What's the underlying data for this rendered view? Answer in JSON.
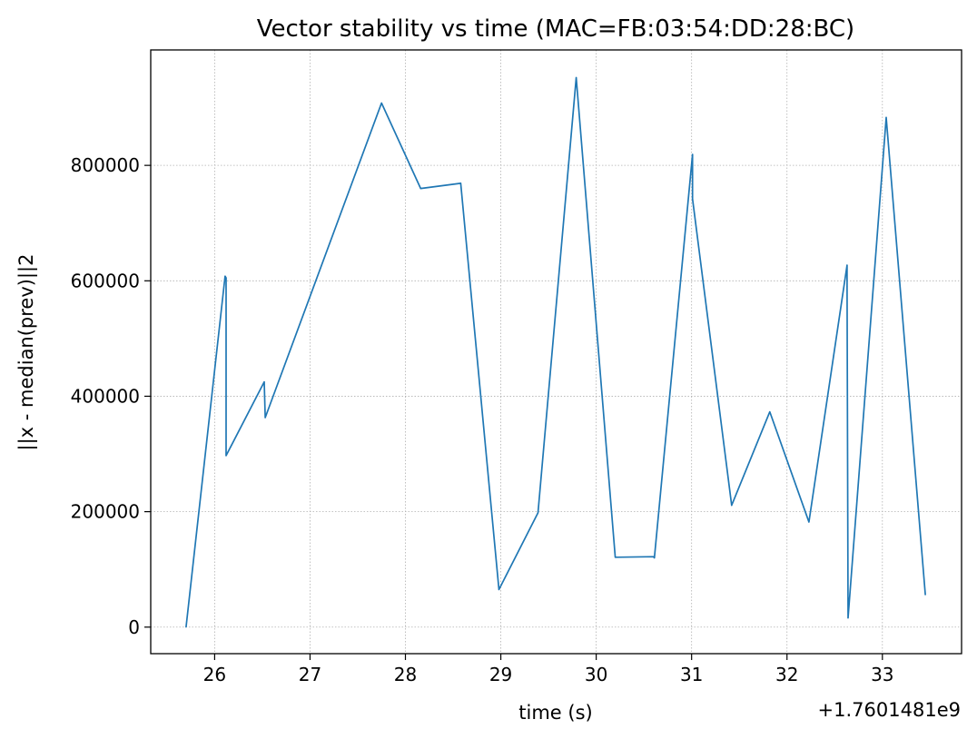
{
  "chart_data": {
    "type": "line",
    "title": "Vector stability vs time (MAC=FB:03:54:DD:28:BC)",
    "xlabel": "time (s)",
    "ylabel": "||x - median(prev)||2",
    "x_offset_label": "+1.7601481e9",
    "xlim": [
      25.33,
      33.83
    ],
    "ylim": [
      -46000,
      1000000
    ],
    "x_ticks": [
      26,
      27,
      28,
      29,
      30,
      31,
      32,
      33
    ],
    "x_tick_labels": [
      "26",
      "27",
      "28",
      "29",
      "30",
      "31",
      "32",
      "33"
    ],
    "y_ticks": [
      0,
      200000,
      400000,
      600000,
      800000
    ],
    "y_tick_labels": [
      "0",
      "200000",
      "400000",
      "600000",
      "800000"
    ],
    "grid": true,
    "line_color": "#1f77b4",
    "series": [
      {
        "x": [
          25.7,
          26.11,
          26.12,
          26.12,
          26.52,
          26.53,
          27.75,
          28.16,
          28.58,
          28.98,
          29.39,
          29.79,
          30.2,
          30.6,
          30.61,
          31.01,
          31.01,
          31.42,
          31.82,
          32.23,
          32.63,
          32.63,
          32.64,
          33.04,
          33.45
        ],
        "y": [
          0,
          608000,
          605000,
          297000,
          425000,
          363000,
          908000,
          760000,
          769000,
          65000,
          198000,
          952000,
          121000,
          122000,
          120000,
          819000,
          742000,
          211000,
          373000,
          182000,
          627000,
          590000,
          16000,
          883000,
          56000
        ]
      }
    ]
  }
}
